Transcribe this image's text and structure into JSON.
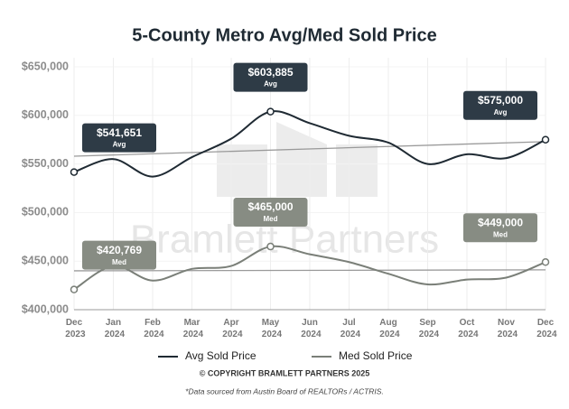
{
  "chart_data": {
    "type": "line",
    "title": "5-County Metro Avg/Med Sold Price",
    "watermark": "Bramlett Partners",
    "copyright": "© COPYRIGHT BRAMLETT PARTNERS 2025",
    "footnote": "*Data sourced from Austin Board of REALTORs / ACTRIS.",
    "categories": [
      "Dec 2023",
      "Jan 2024",
      "Feb 2024",
      "Mar 2024",
      "Apr 2024",
      "May 2024",
      "Jun 2024",
      "Jul 2024",
      "Aug 2024",
      "Sep 2024",
      "Oct 2024",
      "Nov 2024",
      "Dec 2024"
    ],
    "series": [
      {
        "name": "Avg Sold Price",
        "color": "#1f2a33",
        "label_color": "#2e3b46",
        "label_tag": "Avg",
        "values": [
          541651,
          555000,
          537000,
          557000,
          576000,
          603885,
          592000,
          579000,
          572000,
          550000,
          560000,
          556000,
          575000
        ],
        "value_labels": [
          "$541,651",
          null,
          null,
          null,
          null,
          "$603,885",
          null,
          null,
          null,
          null,
          null,
          null,
          "$575,000"
        ],
        "trend": [
          558000,
          573000
        ]
      },
      {
        "name": "Med Sold Price",
        "color": "#7a7f78",
        "label_color": "#878c83",
        "label_tag": "Med",
        "values": [
          420769,
          445000,
          430000,
          442000,
          445000,
          465000,
          457000,
          449000,
          437000,
          426000,
          431000,
          433000,
          449000
        ],
        "value_labels": [
          "$420,769",
          null,
          null,
          null,
          null,
          "$465,000",
          null,
          null,
          null,
          null,
          null,
          null,
          "$449,000"
        ],
        "trend": [
          440000,
          441000
        ]
      }
    ],
    "ylim": [
      400000,
      650000
    ],
    "yticks": [
      {
        "value": 400000,
        "label": "$400,000"
      },
      {
        "value": 450000,
        "label": "$450,000"
      },
      {
        "value": 500000,
        "label": "$500,000"
      },
      {
        "value": 550000,
        "label": "$550,000"
      },
      {
        "value": 600000,
        "label": "$600,000"
      },
      {
        "value": 650000,
        "label": "$650,000"
      }
    ],
    "grid": true
  }
}
